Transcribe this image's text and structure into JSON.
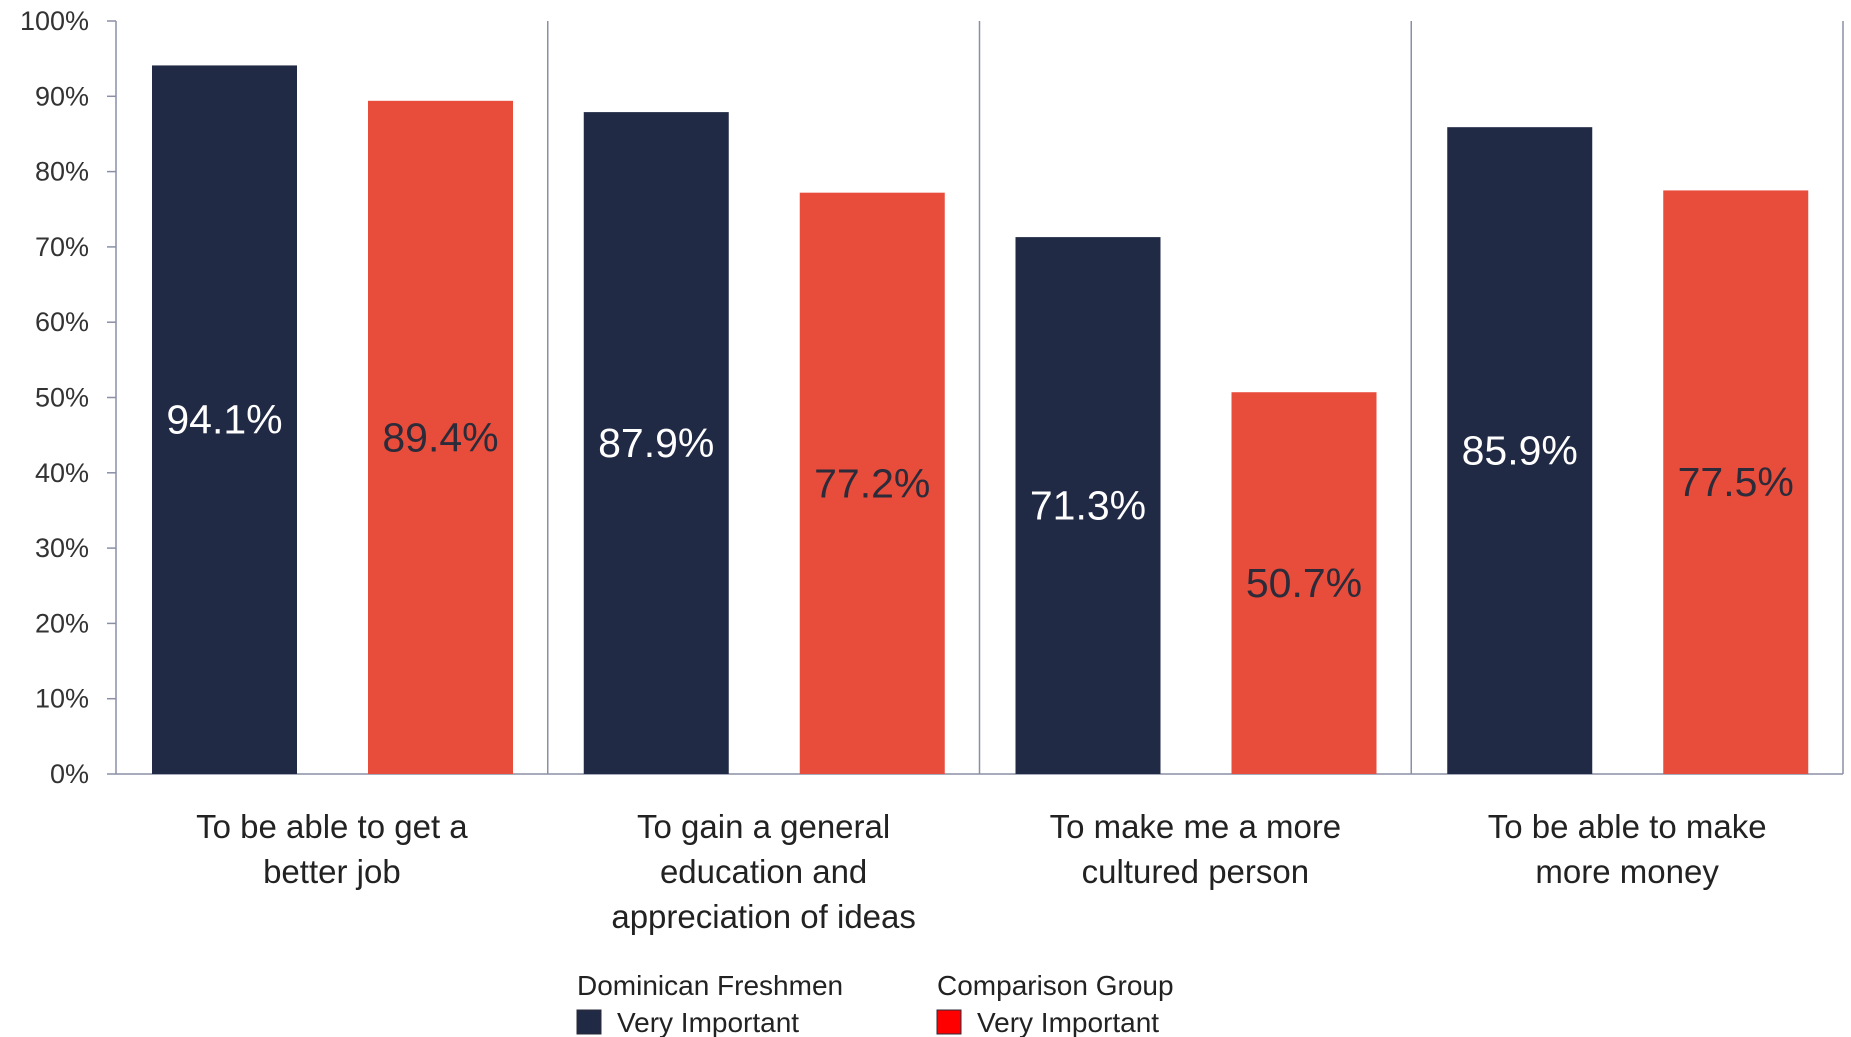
{
  "chart_data": {
    "type": "bar",
    "categories": [
      [
        "To be able to get a",
        "better job"
      ],
      [
        "To gain a general",
        "education and",
        "appreciation of ideas"
      ],
      [
        "To make me a more",
        "cultured person"
      ],
      [
        "To be able to make",
        "more money"
      ]
    ],
    "series": [
      {
        "legend_title": "Dominican Freshmen",
        "name": "Very Important",
        "color": "#212a45",
        "label_color": "#ffffff",
        "values": [
          94.1,
          87.9,
          71.3,
          85.9
        ],
        "labels": [
          "94.1%",
          "87.9%",
          "71.3%",
          "85.9%"
        ]
      },
      {
        "legend_title": "Comparison Group",
        "name": "Very Important",
        "color": "#e84c3a",
        "label_color": "#2b2b3a",
        "legend_swatch_color": "#ff0000",
        "values": [
          89.4,
          77.2,
          50.7,
          77.5
        ],
        "labels": [
          "89.4%",
          "77.2%",
          "50.7%",
          "77.5%"
        ]
      }
    ],
    "ylim": [
      0,
      100
    ],
    "yticks": [
      "0%",
      "10%",
      "20%",
      "30%",
      "40%",
      "50%",
      "60%",
      "70%",
      "80%",
      "90%",
      "100%"
    ],
    "grid": false,
    "category_separators": true,
    "legend_position": "bottom-center"
  }
}
